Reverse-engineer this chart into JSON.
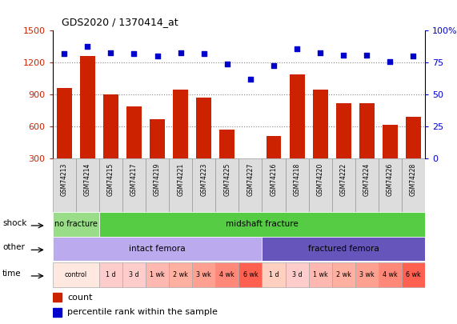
{
  "title": "GDS2020 / 1370414_at",
  "samples": [
    "GSM74213",
    "GSM74214",
    "GSM74215",
    "GSM74217",
    "GSM74219",
    "GSM74221",
    "GSM74223",
    "GSM74225",
    "GSM74227",
    "GSM74216",
    "GSM74218",
    "GSM74220",
    "GSM74222",
    "GSM74224",
    "GSM74226",
    "GSM74228"
  ],
  "counts": [
    960,
    1260,
    900,
    790,
    670,
    950,
    870,
    575,
    305,
    510,
    1090,
    945,
    820,
    820,
    620,
    690
  ],
  "percentile": [
    82,
    88,
    83,
    82,
    80,
    83,
    82,
    74,
    62,
    73,
    86,
    83,
    81,
    81,
    76,
    80
  ],
  "ylim_left": [
    300,
    1500
  ],
  "ylim_right": [
    0,
    100
  ],
  "yticks_left": [
    300,
    600,
    900,
    1200,
    1500
  ],
  "yticks_right": [
    0,
    25,
    50,
    75,
    100
  ],
  "bar_color": "#CC2200",
  "dot_color": "#0000CC",
  "grid_color": "#888888",
  "sample_box_color": "#DDDDDD",
  "shock_nf_color": "#99DD88",
  "shock_mf_color": "#55CC44",
  "other_intact_color": "#BBAAEE",
  "other_frac_color": "#6655BB",
  "time_colors": [
    "#FFE8E0",
    "#FFCCCC",
    "#FFCCCC",
    "#FFB8B0",
    "#FFB0A0",
    "#FFA090",
    "#FF8878",
    "#FF6050",
    "#FFD0C0",
    "#FFCCCC",
    "#FFB8B0",
    "#FFB0A0",
    "#FFA090",
    "#FF8878",
    "#FF6050"
  ],
  "time_labels_actual": [
    "control",
    "1 d",
    "3 d",
    "1 wk",
    "2 wk",
    "3 wk",
    "4 wk",
    "6 wk",
    "1 d",
    "3 d",
    "1 wk",
    "2 wk",
    "3 wk",
    "4 wk",
    "6 wk"
  ],
  "left_axis_color": "#CC2200",
  "right_axis_color": "#0000CC"
}
